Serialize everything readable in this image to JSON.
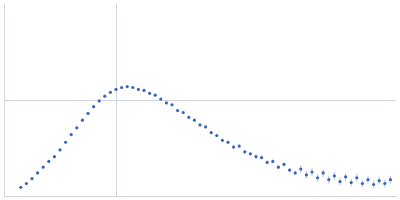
{
  "chart_data": {
    "type": "scatter",
    "color": "#3a66b8",
    "marker": "circle",
    "x": [
      0.15,
      0.2,
      0.25,
      0.3,
      0.35,
      0.4,
      0.45,
      0.5,
      0.55,
      0.6,
      0.65,
      0.7,
      0.75,
      0.8,
      0.85,
      0.9,
      0.95,
      1.0,
      1.05,
      1.1,
      1.15,
      1.2,
      1.25,
      1.3,
      1.35,
      1.4,
      1.45,
      1.5,
      1.55,
      1.6,
      1.65,
      1.7,
      1.75,
      1.8,
      1.85,
      1.9,
      1.95,
      2.0,
      2.05,
      2.1,
      2.15,
      2.2,
      2.25,
      2.3,
      2.35,
      2.4,
      2.45,
      2.5,
      2.55,
      2.6,
      2.65,
      2.7,
      2.75,
      2.8,
      2.85,
      2.9,
      2.95,
      3.0,
      3.05,
      3.1,
      3.15,
      3.2,
      3.25,
      3.3,
      3.35,
      3.4,
      3.45
    ],
    "values": [
      0.09,
      0.13,
      0.18,
      0.24,
      0.3,
      0.36,
      0.41,
      0.48,
      0.56,
      0.64,
      0.71,
      0.79,
      0.86,
      0.93,
      0.99,
      1.04,
      1.08,
      1.11,
      1.13,
      1.14,
      1.13,
      1.11,
      1.1,
      1.07,
      1.05,
      1.01,
      0.97,
      0.95,
      0.89,
      0.87,
      0.82,
      0.79,
      0.74,
      0.72,
      0.66,
      0.63,
      0.58,
      0.56,
      0.51,
      0.52,
      0.46,
      0.44,
      0.41,
      0.4,
      0.35,
      0.36,
      0.3,
      0.33,
      0.27,
      0.24,
      0.28,
      0.22,
      0.25,
      0.19,
      0.24,
      0.17,
      0.21,
      0.15,
      0.2,
      0.14,
      0.19,
      0.13,
      0.17,
      0.12,
      0.16,
      0.13,
      0.17
    ],
    "errors": [
      0.005,
      0.005,
      0.005,
      0.005,
      0.005,
      0.005,
      0.005,
      0.005,
      0.005,
      0.005,
      0.005,
      0.005,
      0.005,
      0.005,
      0.005,
      0.005,
      0.005,
      0.005,
      0.005,
      0.005,
      0.005,
      0.005,
      0.01,
      0.01,
      0.01,
      0.01,
      0.01,
      0.01,
      0.01,
      0.01,
      0.01,
      0.01,
      0.01,
      0.01,
      0.01,
      0.01,
      0.01,
      0.02,
      0.02,
      0.02,
      0.02,
      0.02,
      0.02,
      0.02,
      0.02,
      0.02,
      0.02,
      0.02,
      0.02,
      0.02,
      0.04,
      0.04,
      0.04,
      0.04,
      0.04,
      0.04,
      0.04,
      0.04,
      0.04,
      0.04,
      0.04,
      0.04,
      0.04,
      0.04,
      0.04,
      0.04,
      0.04
    ],
    "xlim": [
      0,
      3.5
    ],
    "xticks": [
      1
    ],
    "ylim": [
      0,
      2
    ],
    "yticks": [
      1
    ],
    "grid": true,
    "tick_labels": false
  }
}
